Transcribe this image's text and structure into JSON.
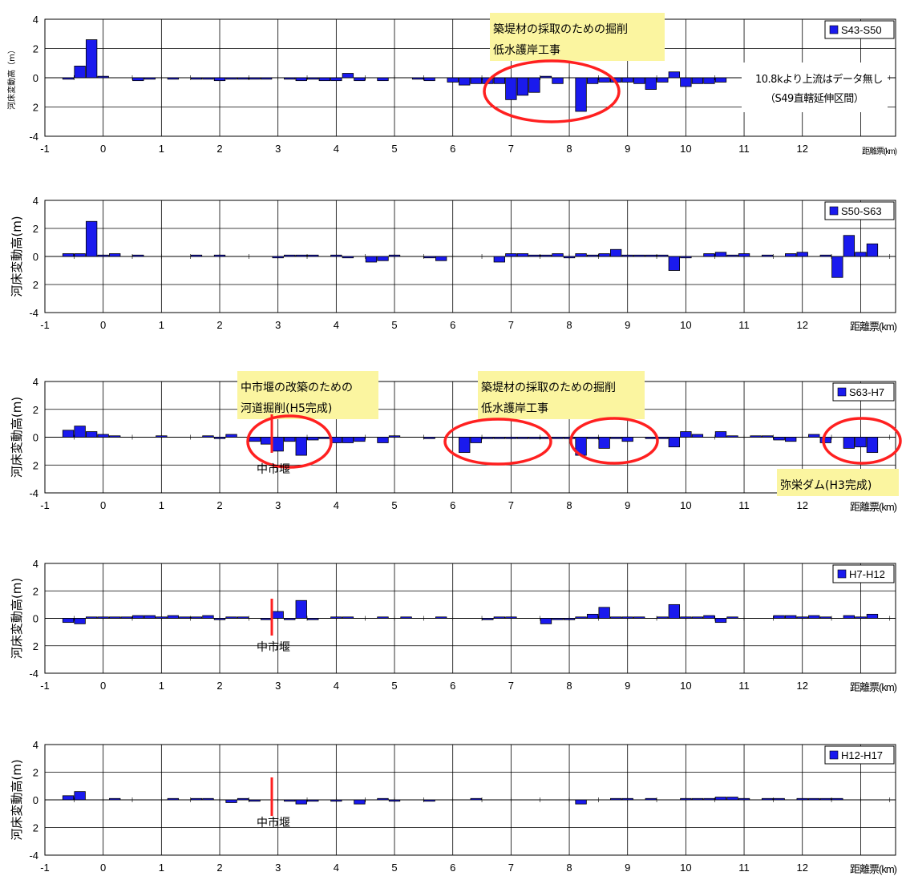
{
  "colors": {
    "bar": "#1a1aee",
    "circle": "#ff2020",
    "callout": "#fbf5a0",
    "grid": "#000000"
  },
  "chart_data": [
    {
      "type": "bar",
      "legend": "S43-S50",
      "xlabel": "距離票(km)",
      "ylabel": "河床変動高（m）",
      "xlim": [
        -1,
        13.6
      ],
      "ylim": [
        -4,
        4
      ],
      "yticks": [
        "4",
        "2",
        "0",
        "2",
        "-4"
      ],
      "xticks": [
        "-1",
        "0",
        "1",
        "2",
        "3",
        "4",
        "5",
        "6",
        "7",
        "8",
        "9",
        "10",
        "11",
        "12"
      ],
      "points": [
        [
          -0.6,
          -0.1
        ],
        [
          -0.4,
          0.8
        ],
        [
          -0.2,
          2.6
        ],
        [
          0.0,
          0.1
        ],
        [
          0.6,
          -0.2
        ],
        [
          0.8,
          -0.1
        ],
        [
          1.2,
          -0.1
        ],
        [
          1.6,
          -0.1
        ],
        [
          1.8,
          -0.1
        ],
        [
          2.0,
          -0.2
        ],
        [
          2.2,
          -0.1
        ],
        [
          2.4,
          -0.1
        ],
        [
          2.6,
          -0.1
        ],
        [
          2.8,
          -0.1
        ],
        [
          3.2,
          -0.1
        ],
        [
          3.4,
          -0.2
        ],
        [
          3.6,
          -0.1
        ],
        [
          3.8,
          -0.2
        ],
        [
          4.0,
          -0.2
        ],
        [
          4.2,
          0.3
        ],
        [
          4.4,
          -0.2
        ],
        [
          4.8,
          -0.2
        ],
        [
          5.4,
          -0.1
        ],
        [
          5.6,
          -0.2
        ],
        [
          6.0,
          -0.3
        ],
        [
          6.2,
          -0.5
        ],
        [
          6.4,
          -0.4
        ],
        [
          6.6,
          -0.4
        ],
        [
          6.8,
          -0.4
        ],
        [
          7.0,
          -1.5
        ],
        [
          7.2,
          -1.2
        ],
        [
          7.4,
          -1.0
        ],
        [
          7.6,
          0.1
        ],
        [
          7.8,
          -0.4
        ],
        [
          8.2,
          -2.3
        ],
        [
          8.4,
          -0.4
        ],
        [
          8.6,
          -0.3
        ],
        [
          8.8,
          -0.3
        ],
        [
          9.0,
          -0.3
        ],
        [
          9.2,
          -0.4
        ],
        [
          9.4,
          -0.8
        ],
        [
          9.6,
          -0.3
        ],
        [
          9.8,
          0.4
        ],
        [
          10.0,
          -0.6
        ],
        [
          10.2,
          -0.4
        ],
        [
          10.4,
          -0.4
        ],
        [
          10.6,
          -0.3
        ]
      ],
      "callouts": [
        {
          "id": "ann1",
          "lines": [
            "築堤材の採取のための掘削",
            "低水護岸工事"
          ]
        },
        {
          "id": "note",
          "lines": [
            "10.8kより上流はデータ無し",
            "（S49直轄延伸区間）"
          ]
        }
      ]
    },
    {
      "type": "bar",
      "legend": "S50-S63",
      "xlabel": "距離票(km)",
      "ylabel": "河床変動高(m)",
      "xlim": [
        -1,
        13.6
      ],
      "ylim": [
        -4,
        4
      ],
      "yticks": [
        "4",
        "2",
        "0",
        "2",
        "-4"
      ],
      "xticks": [
        "-1",
        "0",
        "1",
        "2",
        "3",
        "4",
        "5",
        "6",
        "7",
        "8",
        "9",
        "10",
        "11",
        "12"
      ],
      "points": [
        [
          -0.6,
          0.2
        ],
        [
          -0.4,
          0.2
        ],
        [
          -0.2,
          2.5
        ],
        [
          0.0,
          0.1
        ],
        [
          0.2,
          0.2
        ],
        [
          0.6,
          0.1
        ],
        [
          1.6,
          0.1
        ],
        [
          2.0,
          0.1
        ],
        [
          3.0,
          -0.1
        ],
        [
          3.2,
          0.1
        ],
        [
          3.4,
          0.1
        ],
        [
          3.6,
          0.1
        ],
        [
          4.0,
          0.1
        ],
        [
          4.2,
          -0.1
        ],
        [
          4.6,
          -0.4
        ],
        [
          4.8,
          -0.3
        ],
        [
          5.0,
          0.1
        ],
        [
          5.6,
          -0.1
        ],
        [
          5.8,
          -0.3
        ],
        [
          6.8,
          -0.4
        ],
        [
          7.0,
          0.2
        ],
        [
          7.2,
          0.2
        ],
        [
          7.4,
          0.1
        ],
        [
          7.6,
          0.1
        ],
        [
          7.8,
          0.2
        ],
        [
          8.0,
          -0.1
        ],
        [
          8.2,
          0.2
        ],
        [
          8.4,
          0.1
        ],
        [
          8.6,
          0.2
        ],
        [
          8.8,
          0.5
        ],
        [
          9.0,
          0.1
        ],
        [
          9.2,
          0.1
        ],
        [
          9.4,
          0.1
        ],
        [
          9.6,
          0.1
        ],
        [
          9.8,
          -1.0
        ],
        [
          10.0,
          -0.1
        ],
        [
          10.4,
          0.2
        ],
        [
          10.6,
          0.3
        ],
        [
          10.8,
          0.1
        ],
        [
          11.0,
          0.2
        ],
        [
          11.4,
          0.1
        ],
        [
          11.8,
          0.2
        ],
        [
          12.0,
          0.3
        ],
        [
          12.4,
          0.1
        ],
        [
          12.6,
          -1.5
        ],
        [
          12.8,
          1.5
        ],
        [
          13.0,
          0.3
        ],
        [
          13.2,
          0.9
        ]
      ]
    },
    {
      "type": "bar",
      "legend": "S63-H7",
      "xlabel": "距離票(km)",
      "ylabel": "河床変動高(m)",
      "xlim": [
        -1,
        13.6
      ],
      "ylim": [
        -4,
        4
      ],
      "yticks": [
        "4",
        "2",
        "0",
        "2",
        "-4"
      ],
      "xticks": [
        "-1",
        "0",
        "1",
        "2",
        "3",
        "4",
        "5",
        "6",
        "7",
        "8",
        "9",
        "10",
        "11",
        "12"
      ],
      "points": [
        [
          -0.6,
          0.5
        ],
        [
          -0.4,
          0.8
        ],
        [
          -0.2,
          0.4
        ],
        [
          0.0,
          0.2
        ],
        [
          0.2,
          0.1
        ],
        [
          1.0,
          0.1
        ],
        [
          1.8,
          0.1
        ],
        [
          2.0,
          -0.1
        ],
        [
          2.2,
          0.2
        ],
        [
          2.6,
          -0.3
        ],
        [
          2.8,
          -0.5
        ],
        [
          3.0,
          -1.0
        ],
        [
          3.2,
          -0.3
        ],
        [
          3.4,
          -1.3
        ],
        [
          3.6,
          -0.2
        ],
        [
          3.8,
          -0.1
        ],
        [
          4.0,
          -0.4
        ],
        [
          4.2,
          -0.4
        ],
        [
          4.4,
          -0.3
        ],
        [
          4.8,
          -0.4
        ],
        [
          5.0,
          0.1
        ],
        [
          5.6,
          -0.1
        ],
        [
          6.2,
          -1.1
        ],
        [
          6.4,
          -0.4
        ],
        [
          6.6,
          -0.1
        ],
        [
          6.8,
          -0.1
        ],
        [
          7.0,
          -0.1
        ],
        [
          7.2,
          -0.1
        ],
        [
          7.4,
          -0.1
        ],
        [
          7.6,
          -0.1
        ],
        [
          7.8,
          -0.1
        ],
        [
          8.0,
          -0.1
        ],
        [
          8.2,
          -1.3
        ],
        [
          8.4,
          -0.1
        ],
        [
          8.6,
          -0.8
        ],
        [
          8.8,
          -0.1
        ],
        [
          9.0,
          -0.3
        ],
        [
          9.4,
          -0.1
        ],
        [
          9.6,
          -0.1
        ],
        [
          9.8,
          -0.7
        ],
        [
          10.0,
          0.4
        ],
        [
          10.2,
          0.2
        ],
        [
          10.6,
          0.4
        ],
        [
          10.8,
          0.1
        ],
        [
          11.2,
          0.1
        ],
        [
          11.4,
          0.1
        ],
        [
          11.6,
          -0.2
        ],
        [
          11.8,
          -0.3
        ],
        [
          12.2,
          0.2
        ],
        [
          12.4,
          -0.4
        ],
        [
          12.8,
          -0.8
        ],
        [
          13.0,
          -0.7
        ],
        [
          13.2,
          -1.1
        ]
      ],
      "callouts": [
        {
          "id": "ann1",
          "lines": [
            "中市堰の改築のための",
            "河道掘削(H5完成)"
          ]
        },
        {
          "id": "ann2",
          "lines": [
            "築堤材の採取のための掘削",
            "低水護岸工事"
          ]
        },
        {
          "id": "ann3",
          "lines": [
            "弥栄ダム(H3完成)"
          ]
        }
      ],
      "weir": "中市堰"
    },
    {
      "type": "bar",
      "legend": "H7-H12",
      "xlabel": "距離票(km)",
      "ylabel": "河床変動高(m)",
      "xlim": [
        -1,
        13.6
      ],
      "ylim": [
        -4,
        4
      ],
      "yticks": [
        "4",
        "2",
        "0",
        "2",
        "-4"
      ],
      "xticks": [
        "-1",
        "0",
        "1",
        "2",
        "3",
        "4",
        "5",
        "6",
        "7",
        "8",
        "9",
        "10",
        "11",
        "12"
      ],
      "points": [
        [
          -0.6,
          -0.3
        ],
        [
          -0.4,
          -0.4
        ],
        [
          -0.2,
          0.1
        ],
        [
          0.0,
          0.1
        ],
        [
          0.2,
          0.1
        ],
        [
          0.4,
          0.1
        ],
        [
          0.6,
          0.2
        ],
        [
          0.8,
          0.2
        ],
        [
          1.0,
          0.1
        ],
        [
          1.2,
          0.2
        ],
        [
          1.4,
          0.1
        ],
        [
          1.6,
          0.1
        ],
        [
          1.8,
          0.2
        ],
        [
          2.0,
          -0.1
        ],
        [
          2.2,
          0.1
        ],
        [
          2.4,
          0.1
        ],
        [
          2.8,
          -0.1
        ],
        [
          3.0,
          0.5
        ],
        [
          3.2,
          -0.1
        ],
        [
          3.4,
          1.3
        ],
        [
          3.6,
          -0.1
        ],
        [
          4.0,
          0.1
        ],
        [
          4.2,
          0.1
        ],
        [
          4.8,
          0.1
        ],
        [
          5.2,
          0.1
        ],
        [
          5.8,
          0.1
        ],
        [
          6.6,
          -0.1
        ],
        [
          6.8,
          0.1
        ],
        [
          7.0,
          0.1
        ],
        [
          7.6,
          -0.4
        ],
        [
          7.8,
          -0.1
        ],
        [
          8.0,
          -0.1
        ],
        [
          8.2,
          0.1
        ],
        [
          8.4,
          0.3
        ],
        [
          8.6,
          0.8
        ],
        [
          8.8,
          0.1
        ],
        [
          9.0,
          0.1
        ],
        [
          9.2,
          0.1
        ],
        [
          9.6,
          0.1
        ],
        [
          9.8,
          1.0
        ],
        [
          10.0,
          0.1
        ],
        [
          10.2,
          0.1
        ],
        [
          10.4,
          0.2
        ],
        [
          10.6,
          -0.3
        ],
        [
          10.8,
          0.1
        ],
        [
          11.6,
          0.2
        ],
        [
          11.8,
          0.2
        ],
        [
          12.0,
          0.1
        ],
        [
          12.2,
          0.2
        ],
        [
          12.4,
          0.1
        ],
        [
          12.8,
          0.2
        ],
        [
          13.0,
          0.1
        ],
        [
          13.2,
          0.3
        ]
      ],
      "weir": "中市堰"
    },
    {
      "type": "bar",
      "legend": "H12-H17",
      "xlabel": "距離票(km)",
      "ylabel": "河床変動高(m)",
      "xlim": [
        -1,
        13.6
      ],
      "ylim": [
        -4,
        4
      ],
      "yticks": [
        "4",
        "2",
        "0",
        "2",
        "-4"
      ],
      "xticks": [
        "-1",
        "0",
        "1",
        "2",
        "3",
        "4",
        "5",
        "6",
        "7",
        "8",
        "9",
        "10",
        "11",
        "12"
      ],
      "points": [
        [
          -0.6,
          0.3
        ],
        [
          -0.4,
          0.6
        ],
        [
          0.2,
          0.1
        ],
        [
          1.2,
          0.1
        ],
        [
          1.6,
          0.1
        ],
        [
          1.8,
          0.1
        ],
        [
          2.2,
          -0.2
        ],
        [
          2.4,
          0.1
        ],
        [
          2.6,
          -0.1
        ],
        [
          3.2,
          -0.1
        ],
        [
          3.4,
          -0.3
        ],
        [
          3.6,
          -0.1
        ],
        [
          4.0,
          -0.1
        ],
        [
          4.4,
          -0.3
        ],
        [
          4.8,
          0.1
        ],
        [
          5.0,
          -0.1
        ],
        [
          5.6,
          -0.1
        ],
        [
          6.4,
          0.1
        ],
        [
          8.2,
          -0.3
        ],
        [
          8.8,
          0.1
        ],
        [
          9.0,
          0.1
        ],
        [
          9.4,
          0.1
        ],
        [
          10.0,
          0.1
        ],
        [
          10.2,
          0.1
        ],
        [
          10.4,
          0.1
        ],
        [
          10.6,
          0.2
        ],
        [
          10.8,
          0.2
        ],
        [
          11.0,
          0.1
        ],
        [
          11.4,
          0.1
        ],
        [
          11.6,
          0.1
        ],
        [
          12.0,
          0.1
        ],
        [
          12.2,
          0.1
        ],
        [
          12.4,
          0.1
        ],
        [
          12.6,
          0.1
        ]
      ],
      "weir": "中市堰"
    }
  ]
}
